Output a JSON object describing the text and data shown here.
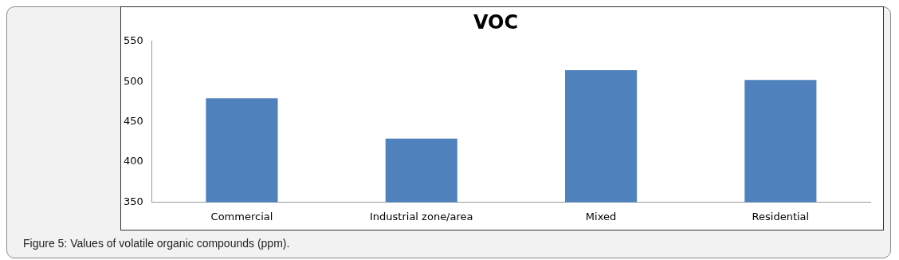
{
  "chart_data": {
    "type": "bar",
    "title": "VOC",
    "categories": [
      "Commercial",
      "Industrial zone/area",
      "Mixed",
      "Residential"
    ],
    "values": [
      479,
      429,
      514,
      502
    ],
    "color": "#4f81bd",
    "ylim": [
      350,
      550
    ],
    "yticks": [
      350,
      400,
      450,
      500,
      550
    ],
    "grid": false,
    "legend": false,
    "annotations": [
      "Figure 5: Values of volatile organic compounds (ppm)."
    ]
  }
}
